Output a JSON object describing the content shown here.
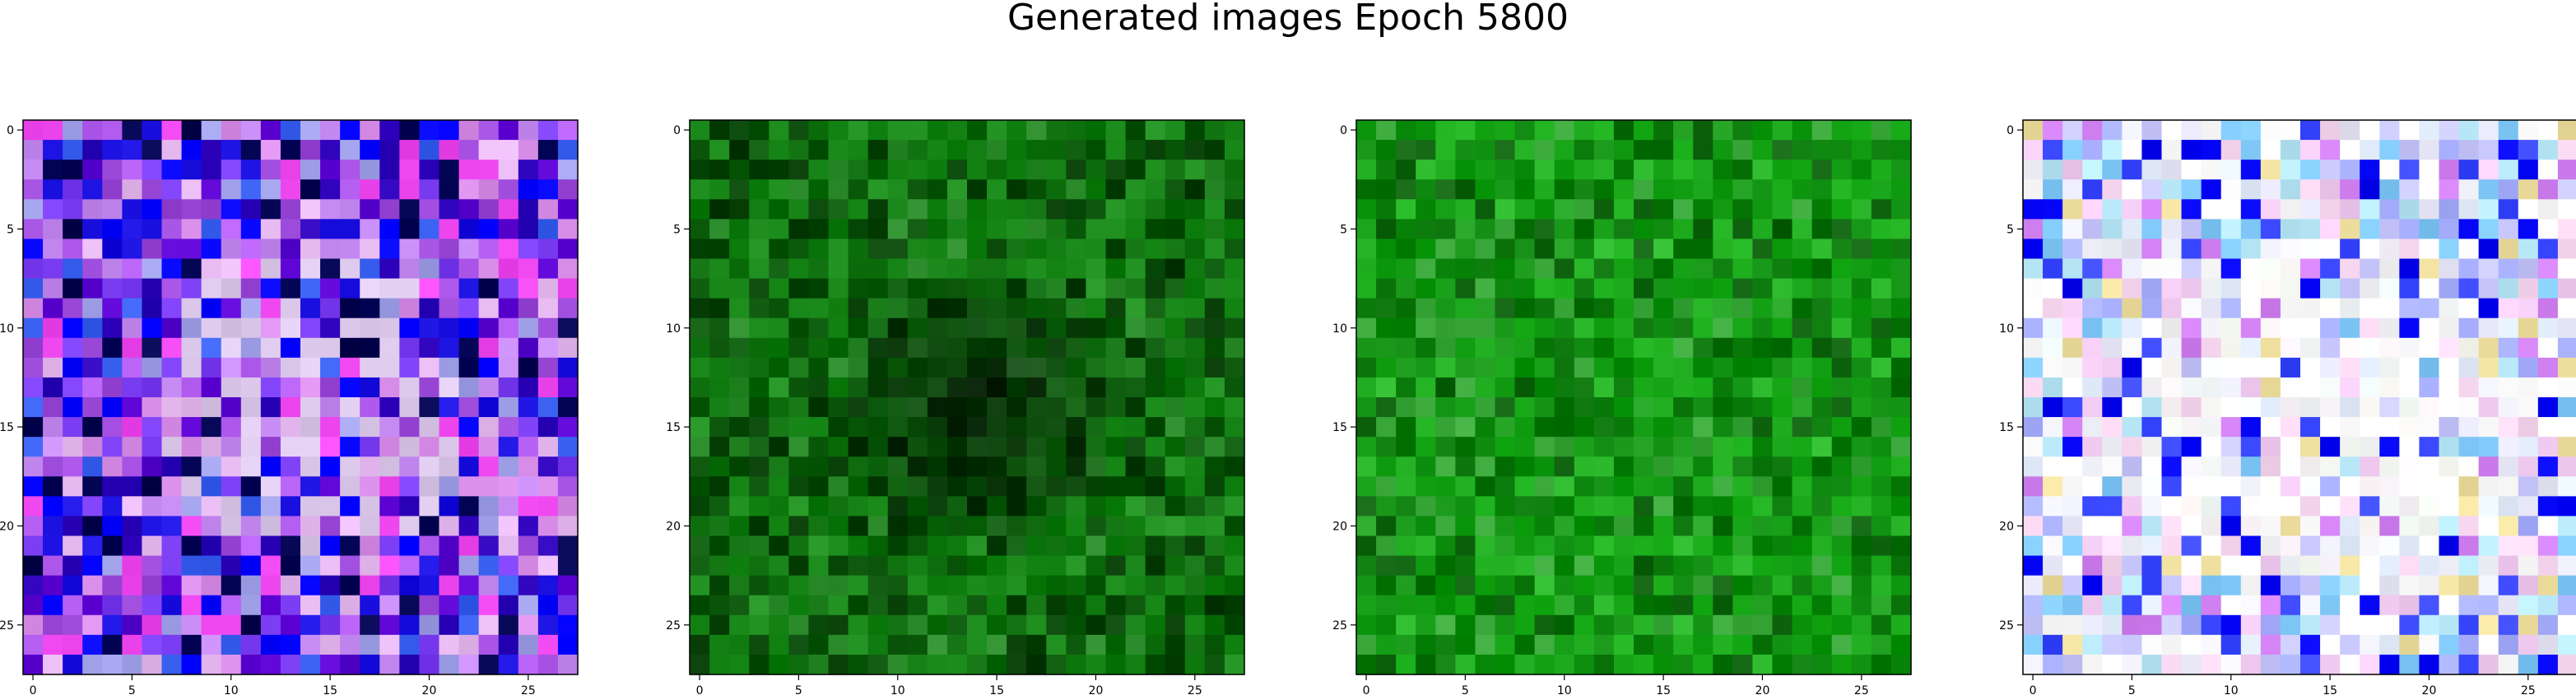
{
  "figure": {
    "title": "Generated images Epoch 5800"
  },
  "panels": [
    {
      "name": "generated-image-1",
      "palette": "purple-blue",
      "palette_colors": [
        "#1a10e0",
        "#0000ff",
        "#7a3cf0",
        "#b35cf0",
        "#d88ee8",
        "#e6b8f0",
        "#c58af2",
        "#3a60f0",
        "#2c00b8",
        "#000050",
        "#f048f0",
        "#a0a0e8",
        "#5a00d0",
        "#9a48d8"
      ]
    },
    {
      "name": "generated-image-2",
      "palette": "dark-green",
      "palette_colors": [
        "#0a6a0a",
        "#107e10",
        "#0b5a0b",
        "#1a8a1a",
        "#065006",
        "#0d700d",
        "#148414",
        "#2a8a2a",
        "#003800",
        "#0f7a0f",
        "#1f901f",
        "#054505"
      ]
    },
    {
      "name": "generated-image-3",
      "palette": "bright-green",
      "palette_colors": [
        "#0c8c0c",
        "#14a014",
        "#0a7a0a",
        "#1cb01c",
        "#22a022",
        "#0e960e",
        "#2ab82a",
        "#067006",
        "#3aa83a",
        "#106410",
        "#18a818",
        "#0a840a"
      ]
    },
    {
      "name": "generated-image-4",
      "palette": "pastel-light",
      "palette_colors": [
        "#f6f6ff",
        "#e6f0ff",
        "#ffffff",
        "#c8c8ff",
        "#a8b0ff",
        "#f2ccf2",
        "#b8e8f8",
        "#3a48ff",
        "#e8e8f8",
        "#d080f0",
        "#f8d8f0",
        "#0000f0",
        "#f0e0a0",
        "#80c8f8",
        "#ffffff"
      ]
    }
  ],
  "axes": {
    "ticks": [
      0,
      5,
      10,
      15,
      20,
      25
    ],
    "tick_labels": [
      "0",
      "5",
      "10",
      "15",
      "20",
      "25"
    ]
  }
}
